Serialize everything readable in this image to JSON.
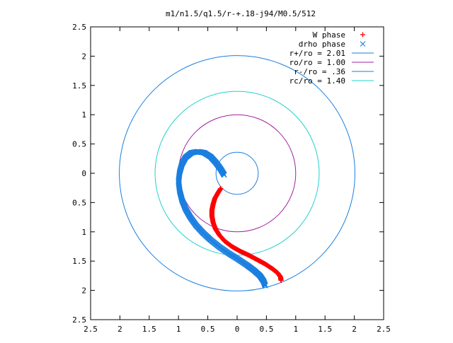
{
  "chart_data": {
    "type": "scatter",
    "title": "m1/n1.5/q1.5/r-+.18-j94/M0.5/512",
    "xlabel": "",
    "ylabel": "",
    "xlim": [
      -2.5,
      2.5
    ],
    "ylim": [
      -2.5,
      2.5
    ],
    "x_tick_values": [
      -2.5,
      -2,
      -1.5,
      -1,
      -0.5,
      0,
      0.5,
      1,
      1.5,
      2,
      2.5
    ],
    "x_tick_labels": [
      "2.5",
      "2",
      "1.5",
      "1",
      "0.5",
      "0",
      "0.5",
      "1",
      "1.5",
      "2",
      "2.5"
    ],
    "y_tick_values": [
      2.5,
      2,
      1.5,
      1,
      0.5,
      0,
      -0.5,
      -1,
      -1.5,
      -2,
      -2.5
    ],
    "y_tick_labels": [
      "2.5",
      "2",
      "1.5",
      "1",
      "0.5",
      "0",
      "0.5",
      "1",
      "1.5",
      "2",
      "2.5"
    ],
    "grid": false,
    "legend_position": "top-right",
    "series": [
      {
        "name": "W phase",
        "kind": "points",
        "marker": "plus",
        "color": "#ff0000",
        "points": [
          [
            -0.28,
            -0.26
          ],
          [
            -0.33,
            -0.34
          ],
          [
            -0.38,
            -0.43
          ],
          [
            -0.41,
            -0.53
          ],
          [
            -0.43,
            -0.63
          ],
          [
            -0.43,
            -0.73
          ],
          [
            -0.41,
            -0.84
          ],
          [
            -0.37,
            -0.95
          ],
          [
            -0.3,
            -1.06
          ],
          [
            -0.21,
            -1.16
          ],
          [
            -0.09,
            -1.25
          ],
          [
            0.05,
            -1.33
          ],
          [
            0.2,
            -1.4
          ],
          [
            0.35,
            -1.48
          ],
          [
            0.48,
            -1.55
          ],
          [
            0.6,
            -1.63
          ],
          [
            0.69,
            -1.7
          ],
          [
            0.74,
            -1.77
          ],
          [
            0.75,
            -1.83
          ]
        ]
      },
      {
        "name": "drho phase",
        "kind": "points",
        "marker": "cross",
        "color": "#1a7fe0",
        "points": [
          [
            -0.22,
            -0.03
          ],
          [
            -0.28,
            0.07
          ],
          [
            -0.36,
            0.18
          ],
          [
            -0.45,
            0.28
          ],
          [
            -0.56,
            0.35
          ],
          [
            -0.67,
            0.37
          ],
          [
            -0.78,
            0.35
          ],
          [
            -0.88,
            0.27
          ],
          [
            -0.94,
            0.16
          ],
          [
            -0.98,
            0.02
          ],
          [
            -1.0,
            -0.14
          ],
          [
            -0.98,
            -0.3
          ],
          [
            -0.94,
            -0.46
          ],
          [
            -0.88,
            -0.61
          ],
          [
            -0.8,
            -0.75
          ],
          [
            -0.7,
            -0.89
          ],
          [
            -0.58,
            -1.02
          ],
          [
            -0.45,
            -1.14
          ],
          [
            -0.3,
            -1.26
          ],
          [
            -0.14,
            -1.37
          ],
          [
            0.02,
            -1.47
          ],
          [
            0.17,
            -1.57
          ],
          [
            0.29,
            -1.66
          ],
          [
            0.39,
            -1.75
          ],
          [
            0.45,
            -1.84
          ],
          [
            0.48,
            -1.92
          ]
        ]
      },
      {
        "name": "r+/ro = 2.01",
        "kind": "circle",
        "radius": 2.01,
        "color": "#1a7fe0"
      },
      {
        "name": "ro/ro = 1.00",
        "kind": "circle",
        "radius": 1.0,
        "color": "#a020a0"
      },
      {
        "name": "r-/ro = .36",
        "kind": "circle",
        "radius": 0.36,
        "color": "#1a7fe0"
      },
      {
        "name": "rc/ro = 1.40",
        "kind": "circle",
        "radius": 1.4,
        "color": "#20d0d0"
      }
    ]
  }
}
